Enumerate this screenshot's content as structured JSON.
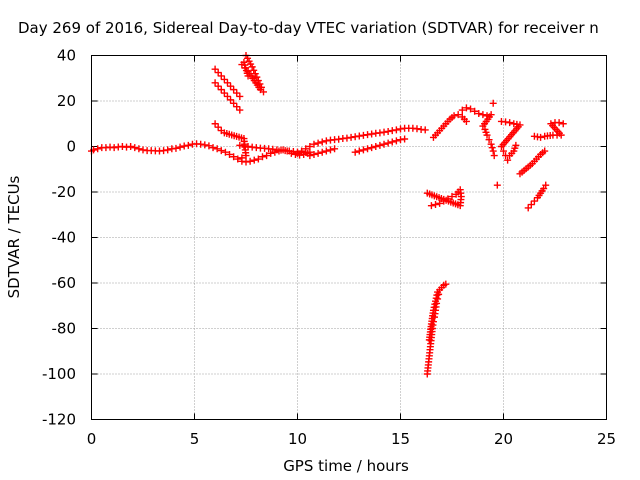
{
  "chart_data": {
    "type": "scatter",
    "title": "Day 269 of 2016, Sidereal Day-to-day VTEC variation (SDTVAR) for receiver n",
    "xlabel": "GPS time / hours",
    "ylabel": "SDTVAR / TECUs",
    "xlim": [
      0,
      25
    ],
    "ylim": [
      -120,
      40
    ],
    "xticks": [
      "0",
      "5",
      "10",
      "15",
      "20",
      "25"
    ],
    "yticks": [
      "40",
      "20",
      "0",
      "-20",
      "-40",
      "-60",
      "-80",
      "-100",
      "-120"
    ],
    "grid": true,
    "marker": "+",
    "color": "#ff0000",
    "series": [
      {
        "values": [
          [
            0.0,
            -2.0
          ],
          [
            0.1,
            -1.5
          ],
          [
            0.3,
            -1.0
          ],
          [
            0.5,
            -0.5
          ],
          [
            0.7,
            -0.5
          ],
          [
            0.9,
            -0.3
          ],
          [
            1.1,
            -0.5
          ],
          [
            1.3,
            -0.2
          ],
          [
            1.5,
            0.0
          ],
          [
            1.7,
            -0.3
          ],
          [
            1.9,
            0.0
          ],
          [
            2.1,
            -0.5
          ],
          [
            2.3,
            -1.0
          ],
          [
            2.5,
            -1.5
          ],
          [
            2.7,
            -1.8
          ],
          [
            2.9,
            -1.8
          ],
          [
            3.1,
            -1.9
          ],
          [
            3.3,
            -2.0
          ],
          [
            3.5,
            -1.8
          ],
          [
            3.7,
            -1.5
          ],
          [
            3.9,
            -1.0
          ],
          [
            4.1,
            -0.8
          ],
          [
            4.3,
            -0.3
          ],
          [
            4.5,
            0.2
          ],
          [
            4.7,
            0.5
          ],
          [
            4.9,
            1.0
          ],
          [
            5.1,
            1.2
          ],
          [
            5.3,
            1.0
          ],
          [
            5.5,
            0.7
          ],
          [
            5.7,
            0.3
          ],
          [
            5.9,
            -0.5
          ],
          [
            6.1,
            -1.0
          ],
          [
            6.3,
            -1.8
          ],
          [
            6.5,
            -2.5
          ],
          [
            6.7,
            -3.5
          ],
          [
            6.9,
            -4.5
          ],
          [
            7.1,
            -5.5
          ],
          [
            7.3,
            -6.5
          ],
          [
            7.5,
            -6.8
          ],
          [
            7.7,
            -6.5
          ],
          [
            7.9,
            -6.0
          ],
          [
            8.1,
            -5.5
          ],
          [
            8.3,
            -4.5
          ],
          [
            8.5,
            -4.0
          ],
          [
            8.7,
            -3.0
          ],
          [
            8.9,
            -2.5
          ],
          [
            9.1,
            -2.0
          ],
          [
            9.3,
            -1.5
          ],
          [
            9.5,
            -2.0
          ],
          [
            9.7,
            -3.0
          ],
          [
            9.9,
            -3.5
          ],
          [
            10.1,
            -3.8
          ],
          [
            10.3,
            -3.5
          ],
          [
            10.5,
            -3.0
          ]
        ]
      },
      {
        "values": [
          [
            7.2,
            0.5
          ],
          [
            7.4,
            0.3
          ],
          [
            7.6,
            0.0
          ],
          [
            7.8,
            -0.3
          ],
          [
            8.0,
            -0.5
          ],
          [
            8.2,
            -0.7
          ],
          [
            8.4,
            -0.8
          ],
          [
            8.6,
            -1.0
          ],
          [
            8.8,
            -1.2
          ],
          [
            9.0,
            -1.5
          ],
          [
            9.2,
            -1.6
          ],
          [
            9.4,
            -1.8
          ],
          [
            9.6,
            -2.0
          ],
          [
            9.8,
            -2.2
          ],
          [
            10.0,
            -2.4
          ],
          [
            10.2,
            -2.5
          ],
          [
            10.4,
            -2.6
          ],
          [
            10.6,
            -2.5
          ]
        ]
      },
      {
        "values": [
          [
            10.0,
            -3.0
          ],
          [
            10.2,
            -2.0
          ],
          [
            10.4,
            -1.0
          ],
          [
            10.6,
            0.0
          ],
          [
            10.8,
            1.0
          ],
          [
            11.0,
            1.5
          ],
          [
            11.2,
            2.0
          ],
          [
            11.4,
            2.5
          ],
          [
            11.6,
            2.8
          ],
          [
            11.8,
            3.0
          ],
          [
            12.0,
            3.2
          ],
          [
            12.2,
            3.5
          ],
          [
            12.4,
            3.7
          ],
          [
            12.6,
            4.0
          ],
          [
            12.8,
            4.3
          ],
          [
            13.0,
            4.6
          ],
          [
            13.2,
            4.9
          ],
          [
            13.4,
            5.2
          ],
          [
            13.6,
            5.5
          ],
          [
            13.8,
            5.8
          ],
          [
            14.0,
            6.0
          ],
          [
            14.2,
            6.3
          ],
          [
            14.4,
            6.6
          ],
          [
            14.6,
            7.0
          ],
          [
            14.8,
            7.3
          ],
          [
            15.0,
            7.7
          ],
          [
            15.2,
            8.0
          ],
          [
            15.4,
            8.0
          ],
          [
            15.6,
            8.0
          ],
          [
            15.8,
            7.8
          ],
          [
            16.0,
            7.5
          ],
          [
            16.2,
            7.3
          ]
        ]
      },
      {
        "values": [
          [
            10.6,
            -4.0
          ],
          [
            10.8,
            -3.5
          ],
          [
            11.0,
            -3.0
          ],
          [
            11.2,
            -2.5
          ],
          [
            11.4,
            -2.0
          ],
          [
            11.6,
            -1.5
          ],
          [
            11.8,
            -1.0
          ]
        ]
      },
      {
        "values": [
          [
            12.8,
            -2.5
          ],
          [
            13.0,
            -2.0
          ],
          [
            13.2,
            -1.5
          ],
          [
            13.4,
            -1.0
          ],
          [
            13.6,
            -0.5
          ],
          [
            13.8,
            0.0
          ],
          [
            14.0,
            0.5
          ],
          [
            14.2,
            1.0
          ],
          [
            14.4,
            1.5
          ],
          [
            14.6,
            2.0
          ],
          [
            14.8,
            2.5
          ],
          [
            15.0,
            3.0
          ],
          [
            15.2,
            3.3
          ]
        ]
      },
      {
        "values": [
          [
            6.0,
            28.0
          ],
          [
            6.15,
            26.5
          ],
          [
            6.3,
            25.0
          ],
          [
            6.45,
            23.5
          ],
          [
            6.6,
            22.0
          ],
          [
            6.75,
            20.5
          ],
          [
            6.9,
            19.0
          ],
          [
            7.05,
            17.5
          ],
          [
            7.2,
            16.0
          ]
        ]
      },
      {
        "values": [
          [
            6.0,
            34.0
          ],
          [
            6.15,
            32.5
          ],
          [
            6.3,
            31.0
          ],
          [
            6.45,
            29.5
          ],
          [
            6.6,
            28.0
          ],
          [
            6.75,
            26.5
          ],
          [
            6.9,
            25.0
          ],
          [
            7.05,
            23.5
          ],
          [
            7.2,
            22.0
          ]
        ]
      },
      {
        "values": [
          [
            7.3,
            36.0
          ],
          [
            7.45,
            34.5
          ],
          [
            7.6,
            33.0
          ],
          [
            7.75,
            31.0
          ],
          [
            7.9,
            29.0
          ],
          [
            8.05,
            27.0
          ],
          [
            8.2,
            25.0
          ]
        ]
      },
      {
        "values": [
          [
            7.5,
            40.0
          ],
          [
            7.65,
            37.5
          ],
          [
            7.8,
            35.0
          ],
          [
            7.95,
            32.0
          ],
          [
            8.1,
            29.0
          ],
          [
            8.25,
            26.0
          ],
          [
            8.35,
            24.0
          ]
        ]
      },
      {
        "values": [
          [
            6.0,
            10.0
          ],
          [
            6.15,
            8.5
          ],
          [
            6.3,
            7.0
          ],
          [
            6.45,
            6.0
          ],
          [
            7.4,
            3.5
          ],
          [
            7.5,
            -4.0
          ],
          [
            7.3,
            -5.0
          ],
          [
            7.4,
            37.0
          ],
          [
            7.6,
            31.0
          ]
        ]
      },
      {
        "values": [
          [
            16.5,
            -26.0
          ],
          [
            16.7,
            -25.5
          ],
          [
            16.9,
            -25.0
          ],
          [
            17.1,
            -24.0
          ],
          [
            17.3,
            -23.0
          ],
          [
            17.5,
            -22.0
          ],
          [
            17.7,
            -21.0
          ],
          [
            17.9,
            -19.0
          ],
          [
            17.95,
            -22.0
          ],
          [
            17.9,
            -26.0
          ],
          [
            16.3,
            -20.5
          ]
        ]
      },
      {
        "values": [
          [
            16.3,
            -100.0
          ],
          [
            16.35,
            -96.0
          ],
          [
            16.4,
            -92.0
          ],
          [
            16.45,
            -88.0
          ],
          [
            16.5,
            -84.0
          ],
          [
            16.55,
            -80.0
          ],
          [
            16.6,
            -77.0
          ],
          [
            16.65,
            -75.0
          ],
          [
            16.7,
            -72.0
          ],
          [
            16.75,
            -69.0
          ],
          [
            16.8,
            -67.0
          ],
          [
            16.85,
            -65.0
          ],
          [
            16.9,
            -63.0
          ],
          [
            17.0,
            -62.0
          ],
          [
            17.1,
            -61.0
          ],
          [
            17.2,
            -60.5
          ],
          [
            16.4,
            -85.0
          ],
          [
            16.5,
            -78.0
          ],
          [
            16.6,
            -72.0
          ],
          [
            16.7,
            -68.0
          ],
          [
            16.8,
            -64.0
          ]
        ]
      },
      {
        "values": [
          [
            16.6,
            4.0
          ],
          [
            16.8,
            6.0
          ],
          [
            17.0,
            8.0
          ],
          [
            17.2,
            10.0
          ],
          [
            17.4,
            12.0
          ],
          [
            17.6,
            13.5
          ],
          [
            17.8,
            14.0
          ],
          [
            18.0,
            13.0
          ],
          [
            18.2,
            11.0
          ]
        ]
      },
      {
        "values": [
          [
            18.0,
            16.0
          ],
          [
            18.2,
            17.0
          ],
          [
            18.4,
            16.5
          ],
          [
            18.6,
            15.5
          ],
          [
            18.8,
            14.5
          ],
          [
            19.0,
            14.0
          ],
          [
            19.2,
            13.5
          ],
          [
            19.4,
            14.0
          ],
          [
            19.0,
            9.0
          ],
          [
            19.1,
            7.5
          ],
          [
            19.2,
            5.0
          ]
        ]
      },
      {
        "values": [
          [
            19.3,
            3.0
          ],
          [
            19.4,
            1.0
          ],
          [
            19.5,
            -2.0
          ],
          [
            19.55,
            -4.0
          ],
          [
            19.5,
            19.0
          ],
          [
            19.7,
            -17.0
          ]
        ]
      },
      {
        "values": [
          [
            19.9,
            11.0
          ],
          [
            20.1,
            10.8
          ],
          [
            20.3,
            10.5
          ],
          [
            20.5,
            10.0
          ],
          [
            20.8,
            9.5
          ],
          [
            19.9,
            0.0
          ],
          [
            20.0,
            -2.0
          ],
          [
            20.1,
            -4.0
          ],
          [
            20.2,
            -6.0
          ],
          [
            20.3,
            -4.0
          ],
          [
            20.5,
            -2.0
          ],
          [
            20.6,
            0.5
          ]
        ]
      },
      {
        "values": [
          [
            20.8,
            -12.0
          ],
          [
            21.0,
            -10.5
          ],
          [
            21.2,
            -9.0
          ],
          [
            21.4,
            -7.5
          ],
          [
            21.6,
            -5.5
          ],
          [
            21.8,
            -3.5
          ],
          [
            22.0,
            -2.0
          ]
        ]
      },
      {
        "values": [
          [
            21.2,
            -27.0
          ],
          [
            21.35,
            -25.5
          ],
          [
            21.5,
            -24.0
          ],
          [
            21.65,
            -22.5
          ],
          [
            21.8,
            -20.5
          ],
          [
            21.95,
            -18.5
          ],
          [
            22.05,
            -17.0
          ]
        ]
      },
      {
        "values": [
          [
            21.5,
            4.5
          ],
          [
            21.8,
            4.0
          ],
          [
            22.0,
            4.5
          ],
          [
            22.4,
            5.0
          ],
          [
            22.6,
            5.0
          ],
          [
            22.8,
            5.0
          ],
          [
            22.3,
            10.0
          ],
          [
            22.5,
            10.5
          ],
          [
            22.7,
            10.5
          ],
          [
            22.9,
            10.0
          ]
        ]
      }
    ]
  }
}
